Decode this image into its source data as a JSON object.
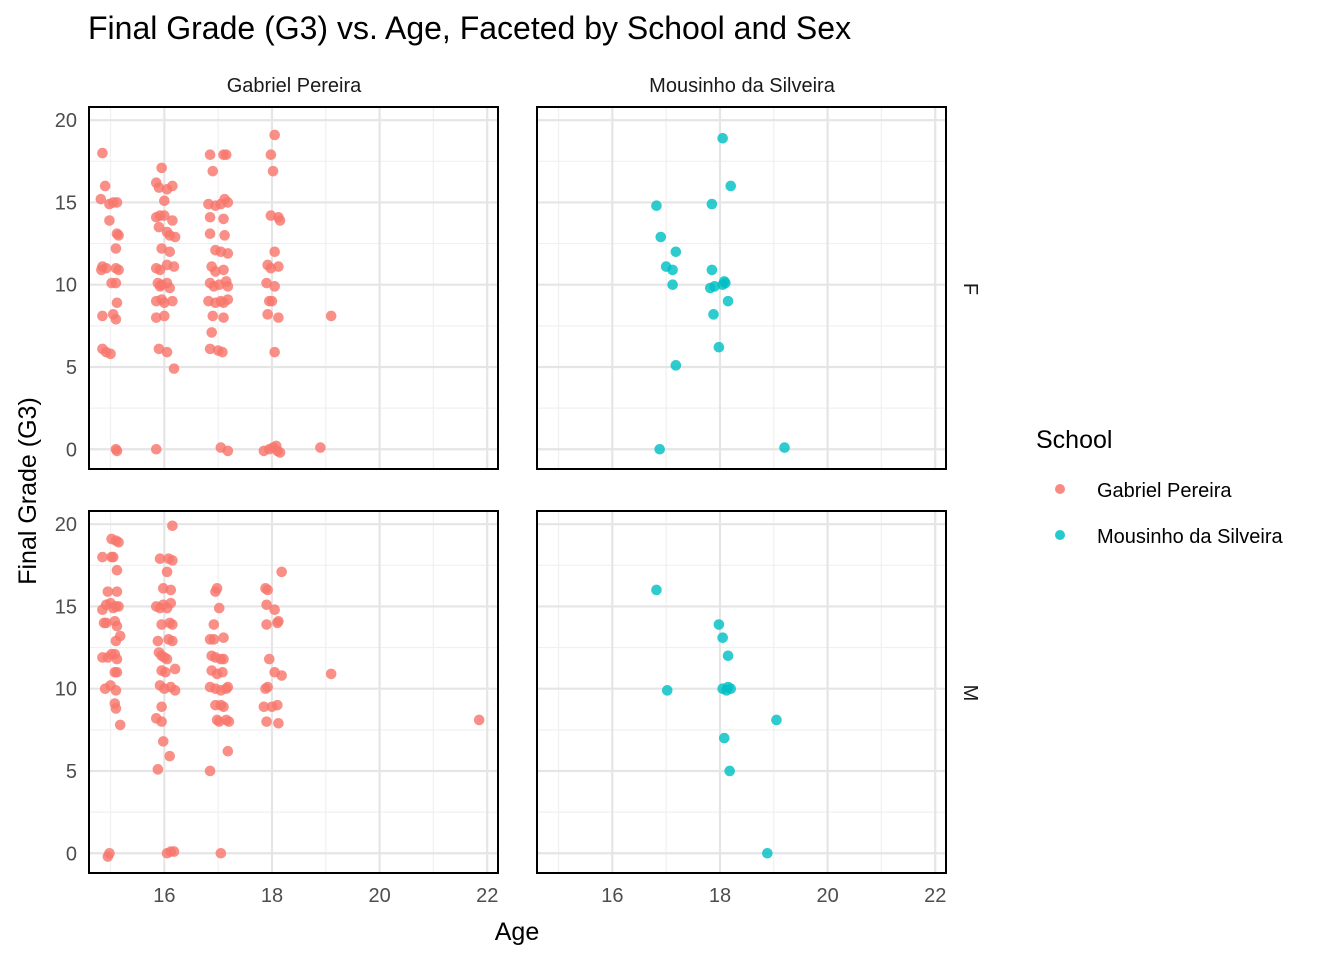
{
  "chart_data": {
    "type": "scatter",
    "title": "Final Grade (G3) vs. Age, Faceted by School and Sex",
    "xlabel": "Age",
    "ylabel": "Final Grade (G3)",
    "xlim": [
      14.6,
      22.2
    ],
    "ylim": [
      -1.2,
      20.8
    ],
    "x_ticks": [
      16,
      18,
      20,
      22
    ],
    "y_ticks": [
      0,
      5,
      10,
      15,
      20
    ],
    "facet_cols": [
      "Gabriel Pereira",
      "Mousinho da Silveira"
    ],
    "facet_rows": [
      "F",
      "M"
    ],
    "legend": {
      "title": "School",
      "position": "right",
      "entries": [
        {
          "label": "Gabriel Pereira",
          "color": "#F8766D"
        },
        {
          "label": "Mousinho da Silveira",
          "color": "#00BFC4"
        }
      ]
    },
    "grid": true,
    "panels": [
      {
        "school": "Gabriel Pereira",
        "sex": "F",
        "color": "#F8766D",
        "points": [
          [
            14.85,
            18.0
          ],
          [
            14.9,
            16.0
          ],
          [
            14.82,
            15.2
          ],
          [
            14.98,
            14.9
          ],
          [
            15.05,
            15.0
          ],
          [
            15.12,
            15.0
          ],
          [
            14.98,
            13.9
          ],
          [
            15.12,
            13.1
          ],
          [
            15.15,
            13.0
          ],
          [
            15.1,
            12.2
          ],
          [
            14.85,
            11.1
          ],
          [
            14.92,
            11.0
          ],
          [
            14.83,
            10.9
          ],
          [
            15.1,
            11.0
          ],
          [
            15.15,
            10.9
          ],
          [
            15.02,
            10.1
          ],
          [
            15.1,
            10.1
          ],
          [
            15.12,
            8.9
          ],
          [
            14.85,
            8.1
          ],
          [
            15.05,
            8.2
          ],
          [
            15.1,
            7.9
          ],
          [
            14.85,
            6.1
          ],
          [
            14.92,
            5.9
          ],
          [
            15.0,
            5.8
          ],
          [
            15.1,
            0.0
          ],
          [
            15.12,
            -0.1
          ],
          [
            15.85,
            16.2
          ],
          [
            15.95,
            17.1
          ],
          [
            15.9,
            15.9
          ],
          [
            16.05,
            15.8
          ],
          [
            16.15,
            16.0
          ],
          [
            16.0,
            15.1
          ],
          [
            15.85,
            14.1
          ],
          [
            15.92,
            14.2
          ],
          [
            16.0,
            14.2
          ],
          [
            16.15,
            13.9
          ],
          [
            15.9,
            13.5
          ],
          [
            16.05,
            13.2
          ],
          [
            16.1,
            13.0
          ],
          [
            16.2,
            12.9
          ],
          [
            15.95,
            12.2
          ],
          [
            16.1,
            12.0
          ],
          [
            15.85,
            11.0
          ],
          [
            15.92,
            10.9
          ],
          [
            16.05,
            11.2
          ],
          [
            16.18,
            11.1
          ],
          [
            15.88,
            10.1
          ],
          [
            15.95,
            10.0
          ],
          [
            16.05,
            10.1
          ],
          [
            15.92,
            9.9
          ],
          [
            16.1,
            9.8
          ],
          [
            15.85,
            9.0
          ],
          [
            15.95,
            9.1
          ],
          [
            16.0,
            8.9
          ],
          [
            16.15,
            9.0
          ],
          [
            15.85,
            8.0
          ],
          [
            16.0,
            8.1
          ],
          [
            15.9,
            6.1
          ],
          [
            16.05,
            5.9
          ],
          [
            16.18,
            4.9
          ],
          [
            15.85,
            0.0
          ],
          [
            16.85,
            17.9
          ],
          [
            16.9,
            16.9
          ],
          [
            17.1,
            17.9
          ],
          [
            17.15,
            17.9
          ],
          [
            16.82,
            14.9
          ],
          [
            16.95,
            14.8
          ],
          [
            17.05,
            14.9
          ],
          [
            17.12,
            15.2
          ],
          [
            17.18,
            15.0
          ],
          [
            16.85,
            14.1
          ],
          [
            17.1,
            14.0
          ],
          [
            16.85,
            13.1
          ],
          [
            17.12,
            13.0
          ],
          [
            16.95,
            12.1
          ],
          [
            17.05,
            12.0
          ],
          [
            17.18,
            11.9
          ],
          [
            16.88,
            11.1
          ],
          [
            16.95,
            10.8
          ],
          [
            17.1,
            10.9
          ],
          [
            16.85,
            10.1
          ],
          [
            16.92,
            9.9
          ],
          [
            17.02,
            10.0
          ],
          [
            17.15,
            10.2
          ],
          [
            17.18,
            9.9
          ],
          [
            16.82,
            9.0
          ],
          [
            16.95,
            8.9
          ],
          [
            17.05,
            9.0
          ],
          [
            17.1,
            8.9
          ],
          [
            17.18,
            9.1
          ],
          [
            16.9,
            8.1
          ],
          [
            17.1,
            8.0
          ],
          [
            16.88,
            7.1
          ],
          [
            16.85,
            6.1
          ],
          [
            17.0,
            6.0
          ],
          [
            17.08,
            5.9
          ],
          [
            17.05,
            0.1
          ],
          [
            17.18,
            -0.1
          ],
          [
            18.05,
            19.1
          ],
          [
            17.98,
            17.9
          ],
          [
            18.02,
            16.9
          ],
          [
            17.98,
            14.2
          ],
          [
            18.12,
            14.1
          ],
          [
            18.15,
            13.9
          ],
          [
            18.05,
            12.0
          ],
          [
            17.92,
            11.2
          ],
          [
            17.98,
            11.0
          ],
          [
            18.12,
            11.1
          ],
          [
            17.9,
            10.1
          ],
          [
            18.05,
            9.9
          ],
          [
            17.95,
            9.0
          ],
          [
            18.0,
            9.0
          ],
          [
            17.92,
            8.2
          ],
          [
            18.12,
            8.0
          ],
          [
            18.05,
            5.9
          ],
          [
            17.85,
            -0.1
          ],
          [
            17.95,
            0.0
          ],
          [
            18.02,
            0.1
          ],
          [
            18.08,
            0.2
          ],
          [
            18.1,
            -0.1
          ],
          [
            18.15,
            -0.2
          ],
          [
            18.9,
            0.1
          ],
          [
            19.1,
            8.1
          ]
        ]
      },
      {
        "school": "Mousinho da Silveira",
        "sex": "F",
        "color": "#00BFC4",
        "points": [
          [
            16.82,
            14.8
          ],
          [
            16.9,
            12.9
          ],
          [
            17.18,
            12.0
          ],
          [
            17.0,
            11.1
          ],
          [
            17.12,
            10.9
          ],
          [
            17.12,
            10.0
          ],
          [
            17.18,
            5.1
          ],
          [
            16.88,
            0.0
          ],
          [
            18.05,
            18.9
          ],
          [
            18.2,
            16.0
          ],
          [
            17.85,
            14.9
          ],
          [
            17.85,
            10.9
          ],
          [
            17.82,
            9.8
          ],
          [
            17.9,
            9.9
          ],
          [
            18.05,
            10.0
          ],
          [
            18.1,
            10.1
          ],
          [
            18.08,
            10.2
          ],
          [
            18.15,
            9.0
          ],
          [
            17.88,
            8.2
          ],
          [
            17.98,
            6.2
          ],
          [
            19.2,
            0.1
          ]
        ]
      },
      {
        "school": "Gabriel Pereira",
        "sex": "M",
        "color": "#F8766D",
        "points": [
          [
            14.85,
            18.0
          ],
          [
            15.02,
            19.1
          ],
          [
            15.1,
            19.0
          ],
          [
            15.15,
            18.9
          ],
          [
            15.02,
            18.0
          ],
          [
            15.05,
            18.0
          ],
          [
            15.12,
            17.2
          ],
          [
            14.95,
            15.9
          ],
          [
            15.12,
            15.9
          ],
          [
            14.85,
            14.8
          ],
          [
            14.92,
            15.1
          ],
          [
            15.0,
            15.2
          ],
          [
            15.05,
            14.9
          ],
          [
            15.1,
            15.0
          ],
          [
            15.15,
            15.0
          ],
          [
            14.88,
            14.0
          ],
          [
            14.92,
            14.0
          ],
          [
            15.08,
            14.1
          ],
          [
            15.12,
            13.8
          ],
          [
            15.18,
            13.2
          ],
          [
            15.1,
            12.9
          ],
          [
            14.85,
            11.9
          ],
          [
            14.95,
            11.9
          ],
          [
            15.02,
            12.1
          ],
          [
            15.08,
            12.1
          ],
          [
            15.12,
            11.8
          ],
          [
            15.08,
            11.0
          ],
          [
            15.12,
            11.0
          ],
          [
            14.9,
            10.0
          ],
          [
            15.0,
            10.2
          ],
          [
            15.1,
            9.9
          ],
          [
            15.08,
            9.1
          ],
          [
            15.1,
            8.8
          ],
          [
            15.18,
            7.8
          ],
          [
            14.95,
            -0.2
          ],
          [
            14.98,
            0.0
          ],
          [
            16.15,
            19.9
          ],
          [
            15.92,
            17.9
          ],
          [
            16.08,
            17.9
          ],
          [
            16.15,
            17.8
          ],
          [
            16.05,
            17.1
          ],
          [
            15.98,
            16.1
          ],
          [
            16.12,
            16.0
          ],
          [
            15.85,
            15.0
          ],
          [
            15.92,
            14.9
          ],
          [
            15.98,
            15.1
          ],
          [
            16.05,
            14.9
          ],
          [
            16.12,
            15.2
          ],
          [
            15.95,
            13.9
          ],
          [
            16.1,
            14.0
          ],
          [
            16.15,
            13.9
          ],
          [
            15.88,
            12.9
          ],
          [
            16.08,
            13.0
          ],
          [
            16.15,
            12.9
          ],
          [
            15.9,
            12.2
          ],
          [
            15.95,
            12.0
          ],
          [
            16.0,
            11.9
          ],
          [
            16.05,
            11.8
          ],
          [
            15.95,
            11.1
          ],
          [
            16.02,
            11.0
          ],
          [
            16.2,
            11.2
          ],
          [
            15.92,
            10.2
          ],
          [
            16.0,
            10.0
          ],
          [
            16.12,
            10.1
          ],
          [
            15.85,
            8.2
          ],
          [
            15.95,
            8.0
          ],
          [
            16.2,
            9.9
          ],
          [
            15.95,
            8.9
          ],
          [
            15.98,
            6.8
          ],
          [
            16.1,
            5.9
          ],
          [
            15.88,
            5.1
          ],
          [
            16.05,
            0.0
          ],
          [
            16.12,
            0.1
          ],
          [
            16.18,
            0.1
          ],
          [
            16.98,
            16.1
          ],
          [
            16.95,
            15.9
          ],
          [
            17.02,
            14.9
          ],
          [
            16.92,
            13.9
          ],
          [
            16.85,
            13.0
          ],
          [
            16.92,
            13.0
          ],
          [
            17.1,
            13.1
          ],
          [
            16.88,
            12.0
          ],
          [
            16.95,
            11.9
          ],
          [
            17.05,
            11.8
          ],
          [
            17.1,
            11.8
          ],
          [
            16.88,
            11.1
          ],
          [
            16.98,
            10.9
          ],
          [
            17.08,
            11.0
          ],
          [
            16.85,
            10.1
          ],
          [
            16.95,
            10.0
          ],
          [
            17.05,
            9.9
          ],
          [
            17.15,
            10.0
          ],
          [
            17.18,
            10.1
          ],
          [
            16.95,
            9.0
          ],
          [
            17.05,
            9.0
          ],
          [
            17.1,
            8.9
          ],
          [
            16.98,
            8.1
          ],
          [
            17.02,
            8.0
          ],
          [
            17.15,
            8.1
          ],
          [
            17.2,
            8.0
          ],
          [
            17.18,
            6.2
          ],
          [
            16.85,
            5.0
          ],
          [
            17.05,
            0.0
          ],
          [
            17.88,
            16.1
          ],
          [
            17.92,
            16.0
          ],
          [
            17.9,
            15.1
          ],
          [
            18.05,
            14.8
          ],
          [
            17.9,
            13.9
          ],
          [
            18.1,
            14.0
          ],
          [
            18.12,
            14.1
          ],
          [
            17.95,
            11.8
          ],
          [
            18.05,
            11.0
          ],
          [
            18.18,
            10.8
          ],
          [
            17.88,
            10.0
          ],
          [
            17.92,
            10.1
          ],
          [
            17.85,
            8.9
          ],
          [
            18.0,
            8.9
          ],
          [
            18.1,
            9.0
          ],
          [
            17.9,
            8.0
          ],
          [
            18.12,
            7.9
          ],
          [
            18.18,
            17.1
          ],
          [
            19.1,
            10.9
          ],
          [
            21.85,
            8.1
          ]
        ]
      },
      {
        "school": "Mousinho da Silveira",
        "sex": "M",
        "color": "#00BFC4",
        "points": [
          [
            16.82,
            16.0
          ],
          [
            17.02,
            9.9
          ],
          [
            17.98,
            13.9
          ],
          [
            18.05,
            13.1
          ],
          [
            18.15,
            12.0
          ],
          [
            18.05,
            10.0
          ],
          [
            18.12,
            9.9
          ],
          [
            18.15,
            10.1
          ],
          [
            18.2,
            10.0
          ],
          [
            18.08,
            7.0
          ],
          [
            18.18,
            5.0
          ],
          [
            19.05,
            8.1
          ],
          [
            18.88,
            0.0
          ]
        ]
      }
    ]
  }
}
